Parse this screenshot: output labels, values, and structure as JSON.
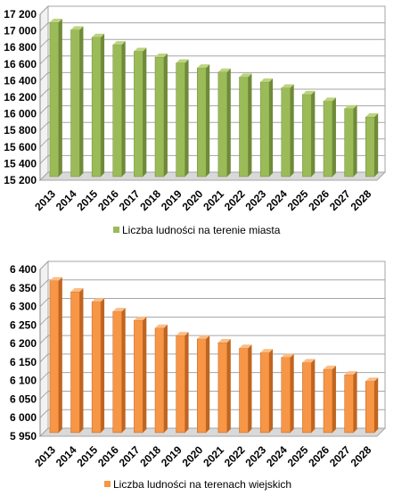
{
  "chart_data": [
    {
      "type": "bar",
      "categories": [
        "2013",
        "2014",
        "2015",
        "2016",
        "2017",
        "2018",
        "2019",
        "2020",
        "2021",
        "2022",
        "2023",
        "2024",
        "2025",
        "2026",
        "2027",
        "2028"
      ],
      "series": [
        {
          "name": "Liczba ludności na terenie miasta",
          "values": [
            17060,
            16970,
            16880,
            16790,
            16710,
            16640,
            16570,
            16510,
            16460,
            16400,
            16340,
            16270,
            16190,
            16110,
            16020,
            15920
          ]
        }
      ],
      "ylim": [
        15200,
        17200
      ],
      "yticks": [
        15200,
        15400,
        15600,
        15800,
        16000,
        16200,
        16400,
        16600,
        16800,
        17000,
        17200
      ],
      "ytick_labels": [
        "15 200",
        "15 400",
        "15 600",
        "15 800",
        "16 000",
        "16 200",
        "16 400",
        "16 600",
        "16 800",
        "17 000",
        "17 200"
      ],
      "grid": true,
      "legend_position": "bottom",
      "color": "#9bbb59",
      "dark_color": "#6f8a38",
      "light_color": "#bcd47f"
    },
    {
      "type": "bar",
      "categories": [
        "2013",
        "2014",
        "2015",
        "2016",
        "2017",
        "2018",
        "2019",
        "2020",
        "2021",
        "2022",
        "2023",
        "2024",
        "2025",
        "2026",
        "2027",
        "2028"
      ],
      "series": [
        {
          "name": "Liczba ludności na terenach wiejskich",
          "values": [
            6360,
            6330,
            6303,
            6277,
            6253,
            6232,
            6212,
            6203,
            6193,
            6178,
            6166,
            6153,
            6139,
            6121,
            6106,
            6089
          ]
        }
      ],
      "ylim": [
        5950,
        6400
      ],
      "yticks": [
        5950,
        6000,
        6050,
        6100,
        6150,
        6200,
        6250,
        6300,
        6350,
        6400
      ],
      "ytick_labels": [
        "5 950",
        "6 000",
        "6 050",
        "6 100",
        "6 150",
        "6 200",
        "6 250",
        "6 300",
        "6 350",
        "6 400"
      ],
      "grid": true,
      "legend_position": "bottom",
      "color": "#f79646",
      "dark_color": "#c0651f",
      "light_color": "#fbbd86"
    }
  ]
}
